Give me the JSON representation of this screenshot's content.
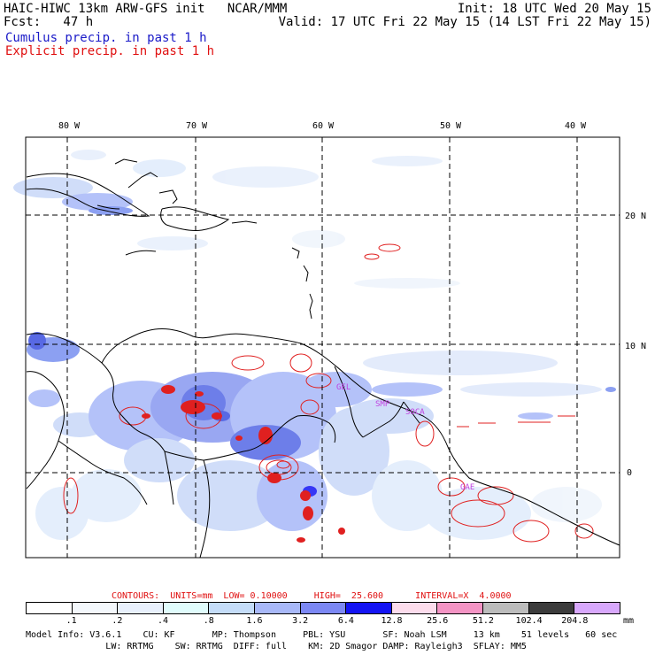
{
  "header": {
    "model_title": "HAIC-HIWC 13km ARW-GFS init   NCAR/MMM",
    "fcst": "Fcst:   47 h",
    "init": "Init: 18 UTC Wed 20 May 15",
    "valid": "Valid: 17 UTC Fri 22 May 15 (14 LST Fri 22 May 15)",
    "legend_cumulus": "Cumulus precip. in past 1 h",
    "legend_explicit": "Explicit precip. in past 1 h"
  },
  "map": {
    "lon_labels": [
      "80 W",
      "70 W",
      "60 W",
      "50 W",
      "40 W"
    ],
    "lat_labels": [
      "20 N",
      "10 N",
      "0"
    ],
    "site_labels": [
      "GEL",
      "SMP",
      "SOCA",
      "GAE"
    ],
    "colors": {
      "coast": "#000000",
      "grid": "#000000",
      "cumulus_light": "#c8d8f8",
      "cumulus_mid": "#7890f0",
      "cumulus_dark": "#3c50e0",
      "explicit_contour": "#e02020",
      "site_label": "#c040e0"
    }
  },
  "contours": {
    "text": "CONTOURS:  UNITS=mm  LOW= 0.10000     HIGH=  25.600      INTERVAL=X  4.0000"
  },
  "colorbar": {
    "labels": [
      ".1",
      ".2",
      ".4",
      ".8",
      "1.6",
      "3.2",
      "6.4",
      "12.8",
      "25.6",
      "51.2",
      "102.4",
      "204.8"
    ],
    "units": "mm",
    "colors": [
      "#ffffff",
      "#f4f8fc",
      "#e8f0fc",
      "#e0fcfc",
      "#c4dcf8",
      "#a8b8f8",
      "#7c88f4",
      "#1414f4",
      "#fcdcec",
      "#f494c4",
      "#bcbcbc",
      "#3c3c3c",
      "#d8a8fc"
    ]
  },
  "model_info": {
    "line1": "Model Info: V3.6.1    CU: KF       MP: Thompson     PBL: YSU       SF: Noah LSM     13 km    51 levels   60 sec",
    "line2": "               LW: RRTMG    SW: RRTMG  DIFF: full    KM: 2D Smagor DAMP: Rayleigh3  SFLAY: MM5"
  }
}
